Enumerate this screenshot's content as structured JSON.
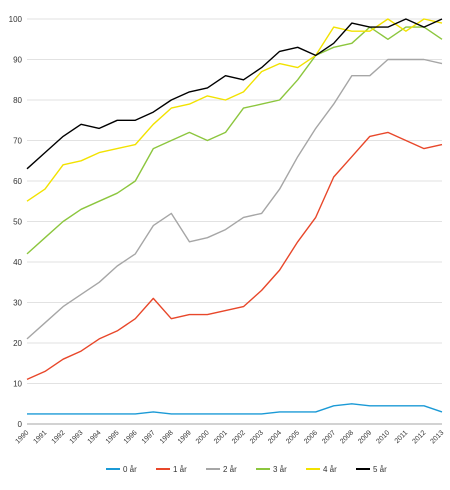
{
  "chart_data": {
    "type": "line",
    "title": "",
    "xlabel": "",
    "ylabel": "",
    "ylim": [
      0,
      100
    ],
    "yticks": [
      0,
      10,
      20,
      30,
      40,
      50,
      60,
      70,
      80,
      90,
      100
    ],
    "grid": true,
    "legend_position": "bottom",
    "categories": [
      "1990",
      "1991",
      "1992",
      "1993",
      "1994",
      "1995",
      "1996",
      "1997",
      "1998",
      "1999",
      "2000",
      "2001",
      "2002",
      "2003",
      "2004",
      "2005",
      "2006",
      "2007",
      "2008",
      "2009",
      "2010",
      "2011",
      "2012",
      "2013"
    ],
    "series": [
      {
        "name": "0 år",
        "color": "#1b9ad6",
        "values": [
          2.5,
          2.5,
          2.5,
          2.5,
          2.5,
          2.5,
          2.5,
          3,
          2.5,
          2.5,
          2.5,
          2.5,
          2.5,
          2.5,
          3,
          3,
          3,
          4.5,
          5,
          4.5,
          4.5,
          4.5,
          4.5,
          3
        ]
      },
      {
        "name": "1 år",
        "color": "#e8472a",
        "values": [
          11,
          13,
          16,
          18,
          21,
          23,
          26,
          31,
          26,
          27,
          27,
          28,
          29,
          33,
          38,
          45,
          51,
          61,
          66,
          71,
          72,
          70,
          68,
          69
        ]
      },
      {
        "name": "2 år",
        "color": "#a6a6a6",
        "values": [
          21,
          25,
          29,
          32,
          35,
          39,
          42,
          49,
          52,
          45,
          46,
          48,
          51,
          52,
          58,
          66,
          73,
          79,
          86,
          86,
          90,
          90,
          90,
          89
        ]
      },
      {
        "name": "3 år",
        "color": "#8cc63e",
        "values": [
          42,
          46,
          50,
          53,
          55,
          57,
          60,
          68,
          70,
          72,
          70,
          72,
          78,
          79,
          80,
          85,
          91,
          93,
          94,
          98,
          95,
          98,
          98,
          95
        ]
      },
      {
        "name": "4 år",
        "color": "#f2e200",
        "values": [
          55,
          58,
          64,
          65,
          67,
          68,
          69,
          74,
          78,
          79,
          81,
          80,
          82,
          87,
          89,
          88,
          91,
          98,
          97,
          97,
          100,
          97,
          100,
          99
        ]
      },
      {
        "name": "5 år",
        "color": "#000000",
        "values": [
          63,
          67,
          71,
          74,
          73,
          75,
          75,
          77,
          80,
          82,
          83,
          86,
          85,
          88,
          92,
          93,
          91,
          94,
          99,
          98,
          98,
          100,
          98,
          100
        ]
      }
    ]
  }
}
